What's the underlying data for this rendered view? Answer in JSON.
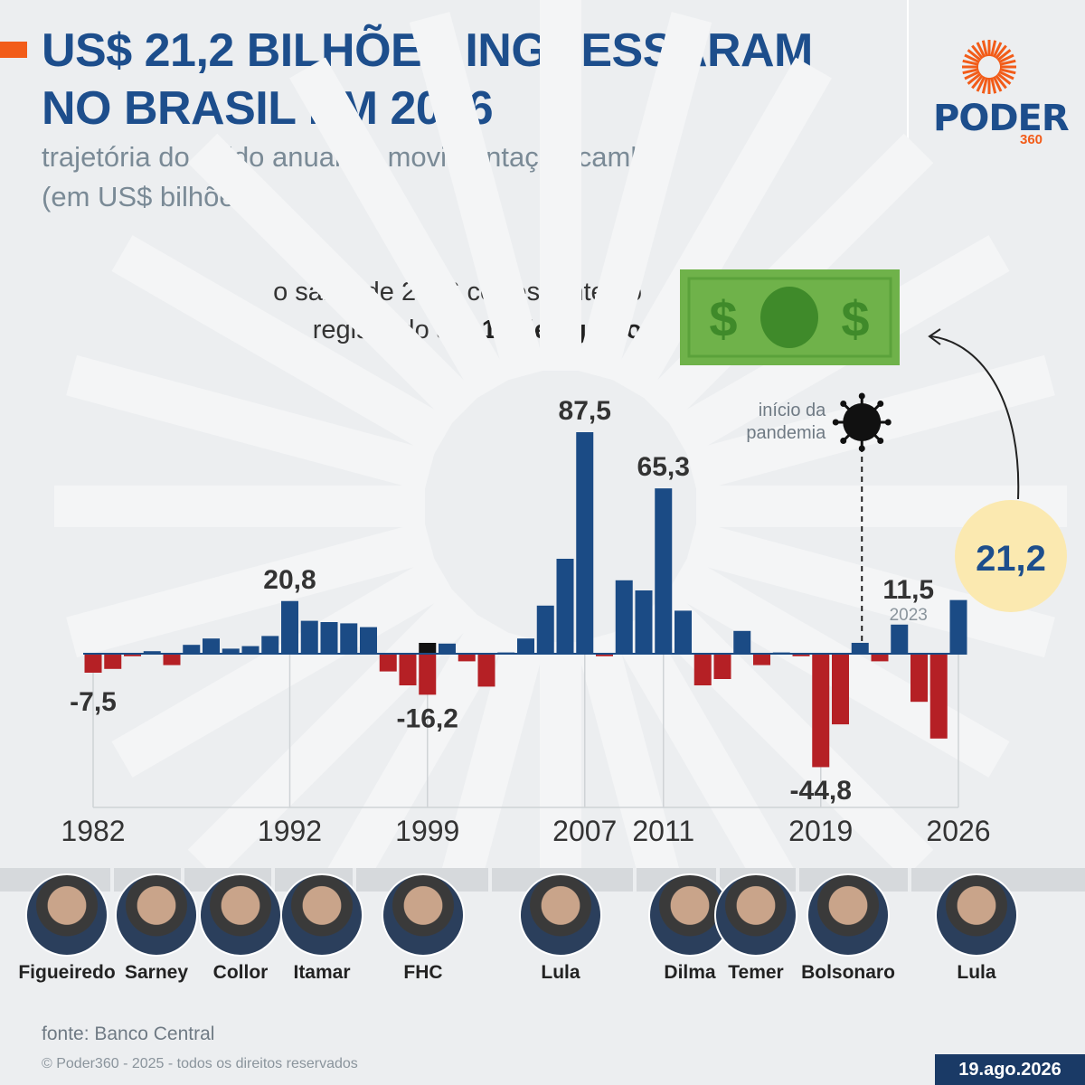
{
  "header": {
    "title_line1": "US$ 21,2 BILHÕES INGRESSARAM",
    "title_line2": "NO BRASIL EM 2026",
    "subtitle_line1": "trajetória do saldo anual da movimentação cambial",
    "subtitle_line2": "(em US$ bilhões)"
  },
  "brand": {
    "name": "PODER",
    "suffix": "360",
    "accent_color": "#f25c19",
    "primary_color": "#1d4e8c"
  },
  "note": {
    "text_line1": "o saldo de 2026 corresponte ao",
    "text_line2_prefix": "registrado ",
    "text_line2_bold": "até 14 de agosto"
  },
  "chart_data": {
    "type": "bar",
    "title": "",
    "xlabel": "",
    "ylabel": "",
    "ylim": [
      -50,
      95
    ],
    "grid": false,
    "positive_color": "#1b4b85",
    "negative_color": "#b52025",
    "highlight_color": "#111111",
    "categories": [
      1982,
      1983,
      1984,
      1985,
      1986,
      1987,
      1988,
      1989,
      1990,
      1991,
      1992,
      1993,
      1994,
      1995,
      1996,
      1997,
      1998,
      1999,
      2000,
      2001,
      2002,
      2003,
      2004,
      2005,
      2006,
      2007,
      2008,
      2009,
      2010,
      2011,
      2012,
      2013,
      2014,
      2015,
      2016,
      2017,
      2018,
      2019,
      2020,
      2021,
      2022,
      2023,
      2024,
      2025,
      2026
    ],
    "values": [
      -7.5,
      -6.0,
      -1.0,
      1.0,
      -4.5,
      3.5,
      6.0,
      2.0,
      3.0,
      7.0,
      20.8,
      13.0,
      12.5,
      12.0,
      10.5,
      -7.0,
      -12.5,
      -16.2,
      4.0,
      -3.0,
      -13.0,
      0.5,
      6.0,
      19.0,
      37.5,
      87.5,
      -1.0,
      29.0,
      25.0,
      65.3,
      17.0,
      -12.5,
      -10.0,
      9.0,
      -4.5,
      0.5,
      -1.0,
      -44.8,
      -27.9,
      4.3,
      -3.0,
      11.5,
      -19.0,
      -33.5,
      21.2
    ],
    "highlight_categories": [
      1999
    ],
    "x_tick_labels": [
      "1982",
      "1992",
      "1999",
      "2007",
      "2011",
      "2019",
      "2026"
    ],
    "data_labels": [
      {
        "x": 1982,
        "text": "-7,5"
      },
      {
        "x": 1992,
        "text": "20,8"
      },
      {
        "x": 1999,
        "text": "-16,2"
      },
      {
        "x": 2007,
        "text": "87,5"
      },
      {
        "x": 2011,
        "text": "65,3"
      },
      {
        "x": 2019,
        "text": "-44,8"
      },
      {
        "x": 2023,
        "text": "11,5",
        "sub": "2023"
      }
    ],
    "callout": {
      "x": 2026,
      "text": "21,2"
    },
    "annotation": {
      "x": 2021,
      "text_line1": "início da",
      "text_line2": "pandemia"
    }
  },
  "presidents": [
    {
      "name": "Figueiredo"
    },
    {
      "name": "Sarney"
    },
    {
      "name": "Collor"
    },
    {
      "name": "Itamar"
    },
    {
      "name": "FHC"
    },
    {
      "name": "Lula"
    },
    {
      "name": "Dilma"
    },
    {
      "name": "Temer"
    },
    {
      "name": "Bolsonaro"
    },
    {
      "name": "Lula"
    }
  ],
  "footer": {
    "source": "fonte: Banco Central",
    "copyright": "© Poder360 - 2025 - todos os direitos reservados",
    "date": "19.ago.2026"
  }
}
